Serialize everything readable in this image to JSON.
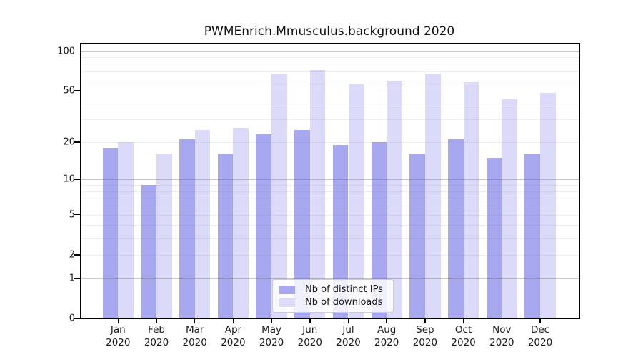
{
  "chart_data": {
    "type": "bar",
    "title": "PWMEnrich.Mmusculus.background 2020",
    "categories": [
      "Jan",
      "Feb",
      "Mar",
      "Apr",
      "May",
      "Jun",
      "Jul",
      "Aug",
      "Sep",
      "Oct",
      "Nov",
      "Dec"
    ],
    "category_year": "2020",
    "series": [
      {
        "name": "Nb of distinct IPs",
        "color": "#a7a7f0",
        "values": [
          18,
          9,
          21,
          16,
          23,
          25,
          19,
          20,
          16,
          21,
          15,
          16
        ]
      },
      {
        "name": "Nb of downloads",
        "color": "#dbdbf9",
        "values": [
          20,
          16,
          25,
          26,
          67,
          72,
          57,
          60,
          68,
          58,
          43,
          48
        ]
      }
    ],
    "xlabel": "",
    "ylabel": "",
    "y_scale": "log10(1+x)",
    "ylim": [
      0,
      114
    ],
    "y_ticks": [
      0,
      1,
      2,
      5,
      10,
      20,
      50,
      100
    ],
    "y_major_gridlines": [
      1,
      10,
      100
    ],
    "y_minor_gridlines": [
      2,
      3,
      4,
      5,
      6,
      7,
      8,
      9,
      20,
      30,
      40,
      50,
      60,
      70,
      80,
      90
    ],
    "grid": true,
    "legend_position": "bottom-center"
  }
}
